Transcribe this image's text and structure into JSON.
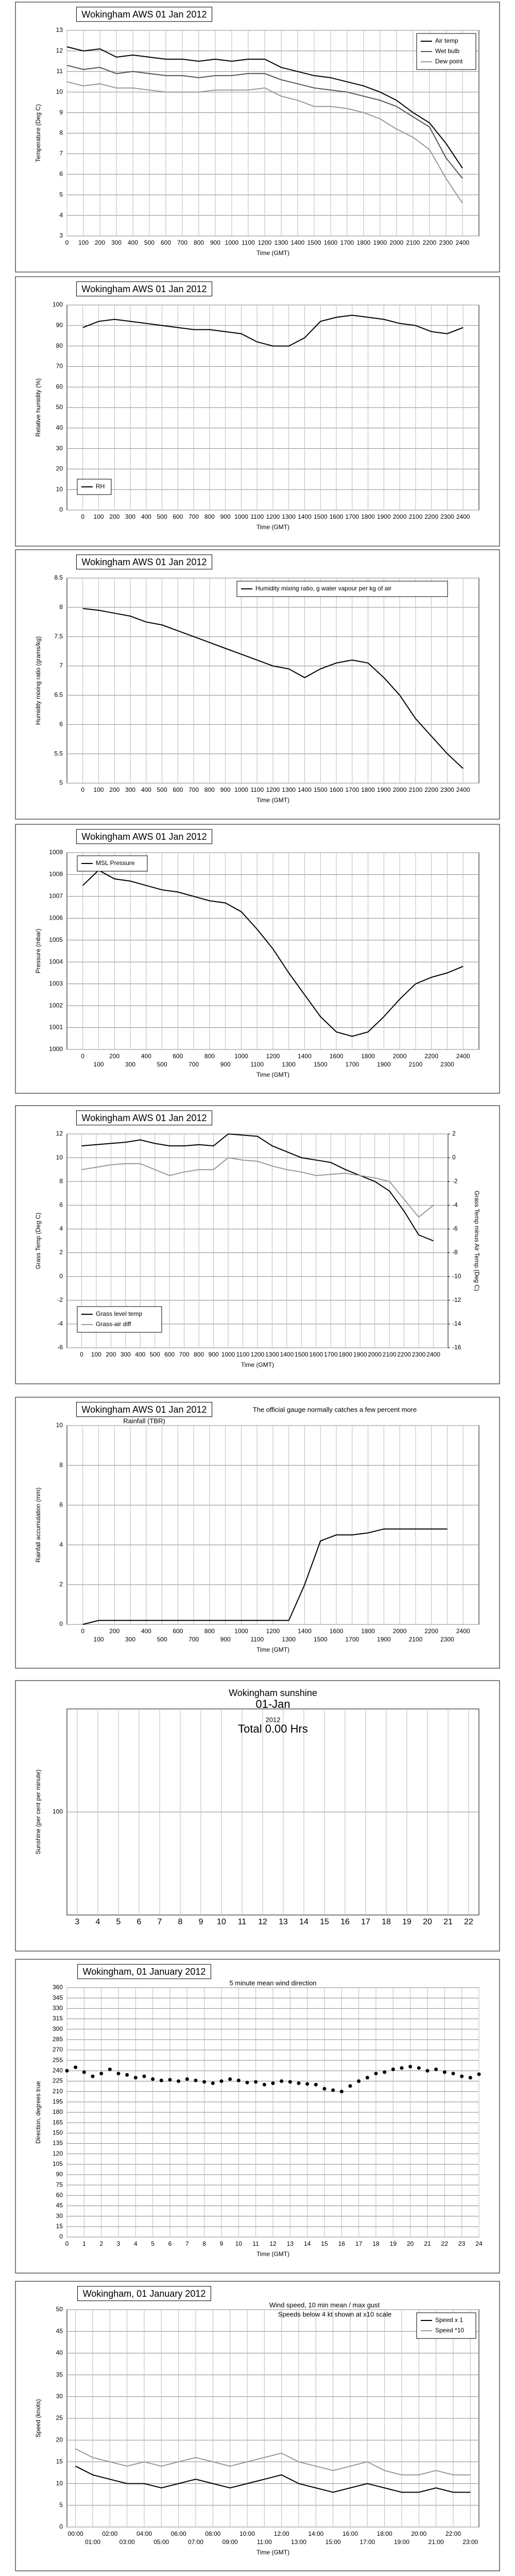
{
  "chart_data": [
    {
      "type": "line",
      "title": "Wokingham AWS 01 Jan 2012",
      "ylabel": "Temperature (Deg C)",
      "xlabel": "Time (GMT)",
      "x": [
        0,
        100,
        200,
        300,
        400,
        500,
        600,
        700,
        800,
        900,
        1000,
        1100,
        1200,
        1300,
        1400,
        1500,
        1600,
        1700,
        1800,
        1900,
        2000,
        2100,
        2200,
        2300,
        2400
      ],
      "xlim": [
        0,
        2500
      ],
      "xticks": [
        0,
        100,
        200,
        300,
        400,
        500,
        600,
        700,
        800,
        900,
        1000,
        1100,
        1200,
        1300,
        1400,
        1500,
        1600,
        1700,
        1800,
        1900,
        2000,
        2100,
        2200,
        2300,
        2400
      ],
      "ylim": [
        3,
        13
      ],
      "yticks": [
        3,
        4,
        5,
        6,
        7,
        8,
        9,
        10,
        11,
        12,
        13
      ],
      "grid": true,
      "legend": "upper right",
      "series": [
        {
          "name": "Air temp",
          "color": "#000000",
          "values": [
            12.2,
            12.0,
            12.1,
            11.7,
            11.8,
            11.7,
            11.6,
            11.6,
            11.5,
            11.6,
            11.5,
            11.6,
            11.6,
            11.2,
            11.0,
            10.8,
            10.7,
            10.5,
            10.3,
            10.0,
            9.6,
            9.0,
            8.5,
            7.5,
            6.3
          ]
        },
        {
          "name": "Wet bulb",
          "color": "#555555",
          "values": [
            11.3,
            11.1,
            11.2,
            10.9,
            11.0,
            10.9,
            10.8,
            10.8,
            10.7,
            10.8,
            10.8,
            10.9,
            10.9,
            10.6,
            10.4,
            10.2,
            10.1,
            10.0,
            9.8,
            9.6,
            9.3,
            8.8,
            8.3,
            6.8,
            5.8
          ]
        },
        {
          "name": "Dew point",
          "color": "#999999",
          "values": [
            10.5,
            10.3,
            10.4,
            10.2,
            10.2,
            10.1,
            10.0,
            10.0,
            10.0,
            10.1,
            10.1,
            10.1,
            10.2,
            9.8,
            9.6,
            9.3,
            9.3,
            9.2,
            9.0,
            8.7,
            8.2,
            7.8,
            7.2,
            5.8,
            4.6
          ]
        }
      ]
    },
    {
      "type": "line",
      "title": "Wokingham AWS 01 Jan 2012",
      "ylabel": "Relative humidity (%)",
      "xlabel": "Time (GMT)",
      "x": [
        0,
        100,
        200,
        300,
        400,
        500,
        600,
        700,
        800,
        900,
        1000,
        1100,
        1200,
        1300,
        1400,
        1500,
        1600,
        1700,
        1800,
        1900,
        2000,
        2100,
        2200,
        2300,
        2400
      ],
      "xlim": [
        -100,
        2500
      ],
      "xticks": [
        0,
        100,
        200,
        300,
        400,
        500,
        600,
        700,
        800,
        900,
        1000,
        1100,
        1200,
        1300,
        1400,
        1500,
        1600,
        1700,
        1800,
        1900,
        2000,
        2100,
        2200,
        2300,
        2400
      ],
      "ylim": [
        0,
        100
      ],
      "yticks": [
        0,
        10,
        20,
        30,
        40,
        50,
        60,
        70,
        80,
        90,
        100
      ],
      "grid": true,
      "legend": "lower left",
      "series": [
        {
          "name": "RH",
          "color": "#000000",
          "values": [
            89,
            92,
            93,
            92,
            91,
            90,
            89,
            88,
            88,
            87,
            86,
            82,
            80,
            80,
            84,
            92,
            94,
            95,
            94,
            93,
            91,
            90,
            87,
            86,
            89
          ]
        }
      ]
    },
    {
      "type": "line",
      "title": "Wokingham AWS 01 Jan 2012",
      "ylabel": "Humidity mixing ratio (grams/kg)",
      "xlabel": "Time (GMT)",
      "x": [
        0,
        100,
        200,
        300,
        400,
        500,
        600,
        700,
        800,
        900,
        1000,
        1100,
        1200,
        1300,
        1400,
        1500,
        1600,
        1700,
        1800,
        1900,
        2000,
        2100,
        2200,
        2300,
        2400
      ],
      "xlim": [
        -100,
        2500
      ],
      "xticks": [
        0,
        100,
        200,
        300,
        400,
        500,
        600,
        700,
        800,
        900,
        1000,
        1100,
        1200,
        1300,
        1400,
        1500,
        1600,
        1700,
        1800,
        1900,
        2000,
        2100,
        2200,
        2300,
        2400
      ],
      "ylim": [
        5,
        8.5
      ],
      "yticks": [
        5,
        5.5,
        6,
        6.5,
        7,
        7.5,
        8,
        8.5
      ],
      "grid": true,
      "legend": "upper center",
      "series": [
        {
          "name": "Humidity mixing ratio, g water vapour per kg of air",
          "color": "#000000",
          "values": [
            7.98,
            7.95,
            7.9,
            7.85,
            7.75,
            7.7,
            7.6,
            7.5,
            7.4,
            7.3,
            7.2,
            7.1,
            7.0,
            6.95,
            6.8,
            6.95,
            7.05,
            7.1,
            7.05,
            6.8,
            6.5,
            6.1,
            5.8,
            5.5,
            5.25
          ]
        }
      ]
    },
    {
      "type": "line",
      "title": "Wokingham AWS 01 Jan 2012",
      "ylabel": "Pressure (mbar)",
      "xlabel": "Time (GMT)",
      "x": [
        0,
        100,
        200,
        300,
        400,
        500,
        600,
        700,
        800,
        900,
        1000,
        1100,
        1200,
        1300,
        1400,
        1500,
        1600,
        1700,
        1800,
        1900,
        2000,
        2100,
        2200,
        2300,
        2400
      ],
      "xlim": [
        -100,
        2500
      ],
      "xticks": [
        0,
        100,
        200,
        300,
        400,
        500,
        600,
        700,
        800,
        900,
        1000,
        1100,
        1200,
        1300,
        1400,
        1500,
        1600,
        1700,
        1800,
        1900,
        2000,
        2100,
        2200,
        2300,
        2400
      ],
      "ylim": [
        1000,
        1009
      ],
      "yticks": [
        1000,
        1001,
        1002,
        1003,
        1004,
        1005,
        1006,
        1007,
        1008,
        1009
      ],
      "grid": true,
      "legend": "upper left",
      "series": [
        {
          "name": "MSL Pressure",
          "color": "#000000",
          "values": [
            1007.5,
            1008.2,
            1007.8,
            1007.7,
            1007.5,
            1007.3,
            1007.2,
            1007.0,
            1006.8,
            1006.7,
            1006.3,
            1005.5,
            1004.6,
            1003.5,
            1002.5,
            1001.5,
            1000.8,
            1000.6,
            1000.8,
            1001.5,
            1002.3,
            1003.0,
            1003.3,
            1003.5,
            1003.8
          ]
        }
      ]
    },
    {
      "type": "line",
      "title": "Wokingham AWS 01 Jan 2012",
      "ylabel": "Grass Temp (Deg C)",
      "y2label": "Grass Temp minus Air Temp (Deg C)",
      "xlabel": "Time (GMT)",
      "x": [
        0,
        100,
        200,
        300,
        400,
        500,
        600,
        700,
        800,
        900,
        1000,
        1100,
        1200,
        1300,
        1400,
        1500,
        1600,
        1700,
        1800,
        1900,
        2000,
        2100,
        2200,
        2300,
        2400
      ],
      "xlim": [
        -100,
        2500
      ],
      "xticks": [
        0,
        100,
        200,
        300,
        400,
        500,
        600,
        700,
        800,
        900,
        1000,
        1100,
        1200,
        1300,
        1400,
        1500,
        1600,
        1700,
        1800,
        1900,
        2000,
        2100,
        2200,
        2300,
        2400
      ],
      "ylim": [
        -6,
        12
      ],
      "yticks": [
        -6,
        -4,
        -2,
        0,
        2,
        4,
        6,
        8,
        10,
        12
      ],
      "y2lim": [
        -16,
        2
      ],
      "y2ticks": [
        -16,
        -14,
        -12,
        -10,
        -8,
        -6,
        -4,
        -2,
        0,
        2
      ],
      "grid": true,
      "legend": "lower left",
      "series": [
        {
          "name": "Grass level temp",
          "color": "#000000",
          "values": [
            11.0,
            11.1,
            11.2,
            11.3,
            11.5,
            11.2,
            11.0,
            11.0,
            11.1,
            11.0,
            12.0,
            11.9,
            11.8,
            11.0,
            10.5,
            10.0,
            9.8,
            9.6,
            9.0,
            8.5,
            8.0,
            7.2,
            5.5,
            3.5,
            3.0
          ]
        },
        {
          "name": "Grass-air diff",
          "color": "#999999",
          "axis": "y2",
          "values": [
            -1.0,
            -0.8,
            -0.6,
            -0.5,
            -0.5,
            -1.0,
            -1.5,
            -1.2,
            -1.0,
            -1.0,
            0.0,
            -0.2,
            -0.3,
            -0.7,
            -1.0,
            -1.2,
            -1.5,
            -1.4,
            -1.3,
            -1.5,
            -1.7,
            -2.0,
            -3.5,
            -5.0,
            -4.0
          ]
        }
      ]
    },
    {
      "type": "line",
      "title": "Wokingham AWS 01 Jan 2012",
      "subtitle": "Rainfall (TBR)",
      "note": "The official gauge normally catches a few percent more",
      "ylabel": "Rainfall accumulation (mm)",
      "xlabel": "Time (GMT)",
      "x": [
        0,
        100,
        200,
        300,
        400,
        500,
        600,
        700,
        800,
        900,
        1000,
        1100,
        1200,
        1300,
        1400,
        1500,
        1600,
        1700,
        1800,
        1900,
        2000,
        2100,
        2200,
        2300,
        2400
      ],
      "xlim": [
        -100,
        2500
      ],
      "xticks": [
        0,
        100,
        200,
        300,
        400,
        500,
        600,
        700,
        800,
        900,
        1000,
        1100,
        1200,
        1300,
        1400,
        1500,
        1600,
        1700,
        1800,
        1900,
        2000,
        2100,
        2200,
        2300,
        2400
      ],
      "ylim": [
        0,
        10
      ],
      "yticks": [
        0,
        2,
        4,
        6,
        8,
        10
      ],
      "grid": true,
      "series": [
        {
          "name": "Rainfall",
          "color": "#000000",
          "values": [
            0,
            0.2,
            0.2,
            0.2,
            0.2,
            0.2,
            0.2,
            0.2,
            0.2,
            0.2,
            0.2,
            0.2,
            0.2,
            0.2,
            2.0,
            4.2,
            4.5,
            4.5,
            4.6,
            4.8,
            4.8,
            4.8,
            4.8,
            4.8,
            null
          ]
        }
      ]
    },
    {
      "type": "bar",
      "title": "Wokingham sunshine",
      "subtitle": "01-Jan",
      "year": "2012",
      "total": "Total 0.00 Hrs",
      "ylabel": "Sunshine (per cent per minute)",
      "categories": [
        "3",
        "4",
        "5",
        "6",
        "7",
        "8",
        "9",
        "10",
        "11",
        "12",
        "13",
        "14",
        "15",
        "16",
        "17",
        "18",
        "19",
        "20",
        "21",
        "22"
      ],
      "ylim": [
        0,
        200
      ],
      "yticks": [
        100
      ],
      "grid": true
    },
    {
      "type": "scatter",
      "title": "Wokingham,  01 January 2012",
      "subtitle": "5 minute mean wind direction",
      "ylabel": "Direction, degrees true",
      "xlabel": "Time (GMT)",
      "x": [
        0,
        0.5,
        1,
        1.5,
        2,
        2.5,
        3,
        3.5,
        4,
        4.5,
        5,
        5.5,
        6,
        6.5,
        7,
        7.5,
        8,
        8.5,
        9,
        9.5,
        10,
        10.5,
        11,
        11.5,
        12,
        12.5,
        13,
        13.5,
        14,
        14.5,
        15,
        15.5,
        16,
        16.5,
        17,
        17.5,
        18,
        18.5,
        19,
        19.5,
        20,
        20.5,
        21,
        21.5,
        22,
        22.5,
        23,
        23.5,
        24
      ],
      "values": [
        240,
        245,
        238,
        232,
        236,
        242,
        236,
        234,
        230,
        232,
        228,
        226,
        227,
        225,
        228,
        226,
        224,
        222,
        225,
        228,
        226,
        223,
        224,
        220,
        222,
        225,
        224,
        222,
        221,
        220,
        214,
        212,
        210,
        218,
        225,
        230,
        236,
        238,
        242,
        244,
        246,
        244,
        240,
        242,
        238,
        236,
        232,
        230,
        235
      ],
      "color": "#000000",
      "xlim": [
        0,
        24
      ],
      "xticks": [
        0,
        1,
        2,
        3,
        4,
        5,
        6,
        7,
        8,
        9,
        10,
        11,
        12,
        13,
        14,
        15,
        16,
        17,
        18,
        19,
        20,
        21,
        22,
        23,
        24
      ],
      "ylim": [
        0,
        360
      ],
      "yticks": [
        0,
        15,
        30,
        45,
        60,
        75,
        90,
        105,
        120,
        135,
        150,
        165,
        180,
        195,
        210,
        225,
        240,
        255,
        270,
        285,
        300,
        315,
        330,
        345,
        360
      ],
      "grid": true
    },
    {
      "type": "line",
      "title": "Wokingham,  01 January 2012",
      "subtitle": "Wind speed, 10 min mean / max gust",
      "note": "Speeds below 4 kt shown at x10 scale",
      "ylabel": "Speed (knots)",
      "xlabel": "Time (GMT)",
      "categories": [
        "00:00",
        "01:00",
        "02:00",
        "03:00",
        "04:00",
        "05:00",
        "06:00",
        "07:00",
        "08:00",
        "09:00",
        "10:00",
        "11:00",
        "12:00",
        "13:00",
        "14:00",
        "15:00",
        "16:00",
        "17:00",
        "18:00",
        "19:00",
        "20:00",
        "21:00",
        "22:00",
        "23:00"
      ],
      "ylim": [
        0,
        50
      ],
      "yticks": [
        0,
        5,
        10,
        15,
        20,
        25,
        30,
        35,
        40,
        45,
        50
      ],
      "grid": true,
      "legend": "upper right",
      "series": [
        {
          "name": "Speed x 1",
          "color": "#000000",
          "values": [
            14,
            12,
            11,
            10,
            10,
            9,
            10,
            11,
            10,
            9,
            10,
            11,
            12,
            10,
            9,
            8,
            9,
            10,
            9,
            8,
            8,
            9,
            8,
            8
          ]
        },
        {
          "name": "Speed *10",
          "color": "#999999",
          "values": [
            18,
            16,
            15,
            14,
            15,
            14,
            15,
            16,
            15,
            14,
            15,
            16,
            17,
            15,
            14,
            13,
            14,
            15,
            13,
            12,
            12,
            13,
            12,
            12
          ]
        }
      ]
    }
  ]
}
